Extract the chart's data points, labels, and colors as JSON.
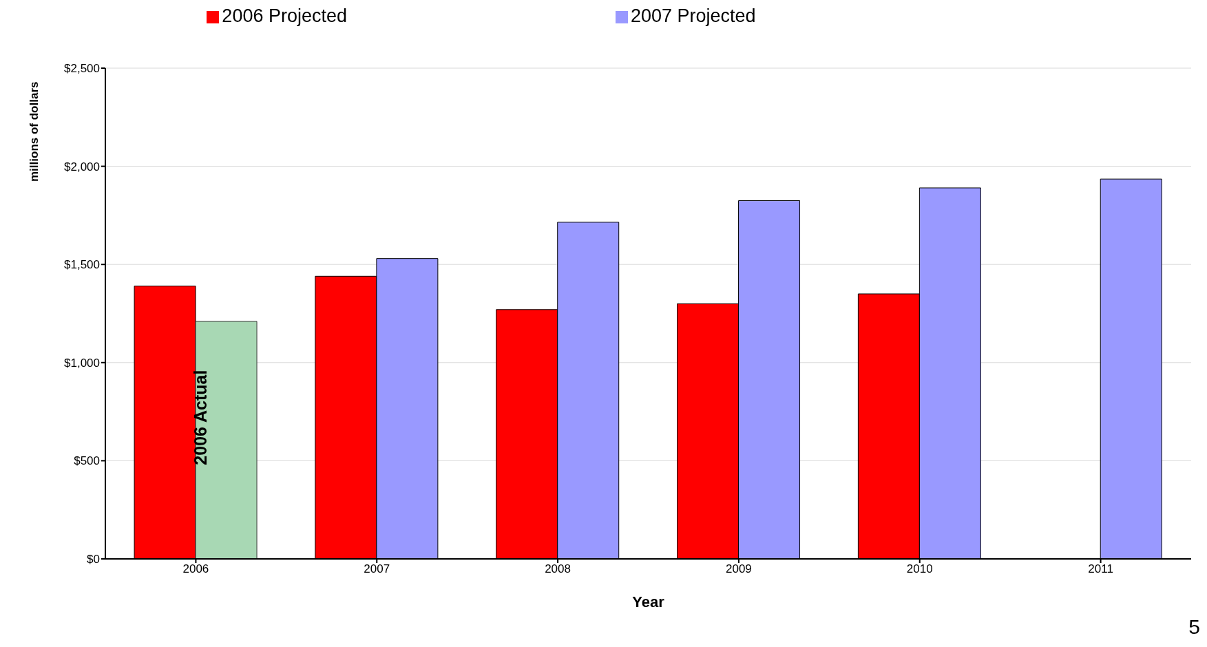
{
  "chart_data": {
    "type": "bar",
    "xlabel": "Year",
    "ylabel": "millions of dollars",
    "categories": [
      "2006",
      "2007",
      "2008",
      "2009",
      "2010",
      "2011"
    ],
    "series": [
      {
        "name": "2006 Projected",
        "color": "#ff0000",
        "values": [
          1390,
          1440,
          1270,
          1300,
          1350,
          null
        ]
      },
      {
        "name": "2007 Projected",
        "color": "#9999ff",
        "colors": [
          "#a8d8b4",
          "#9999ff",
          "#9999ff",
          "#9999ff",
          "#9999ff",
          "#9999ff"
        ],
        "values": [
          1210,
          1530,
          1715,
          1825,
          1890,
          1935
        ]
      }
    ],
    "ylim": [
      0,
      2500
    ],
    "yticks": [
      {
        "value": 0,
        "label": "$0"
      },
      {
        "value": 500,
        "label": "$500"
      },
      {
        "value": 1000,
        "label": "$1,000"
      },
      {
        "value": 1500,
        "label": "$1,500"
      },
      {
        "value": 2000,
        "label": "$2,000"
      },
      {
        "value": 2500,
        "label": "$2,500"
      }
    ],
    "grid": "y",
    "legend": "top",
    "annotations": [
      {
        "text": "2006 Actual",
        "x": "2006",
        "y": 720
      },
      "5"
    ]
  }
}
